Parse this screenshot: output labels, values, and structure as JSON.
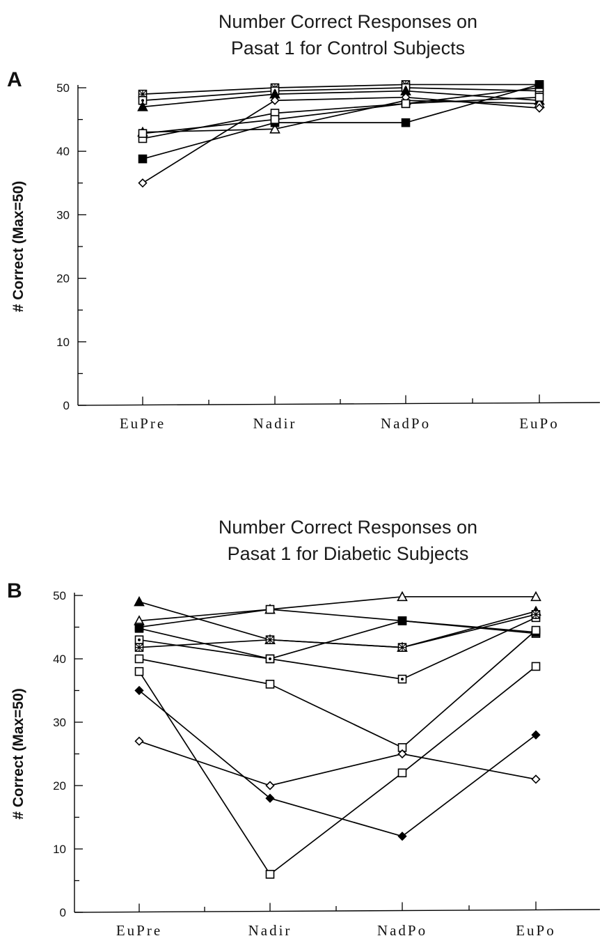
{
  "chart_data": [
    {
      "panel_label": "A",
      "type": "line",
      "title_lines": [
        "Number Correct Responses on",
        "Pasat 1 for Control Subjects"
      ],
      "ylabel": "# Correct (Max=50)",
      "xlabel": "",
      "ylim": [
        0,
        50
      ],
      "yticks": [
        0,
        10,
        20,
        30,
        40,
        50
      ],
      "categories": [
        "EuPre",
        "Nadir",
        "NadPo",
        "EuPo"
      ],
      "grid": false,
      "series": [
        {
          "values": [
            49,
            50,
            50.5,
            50.5
          ],
          "marker": "square-cross"
        },
        {
          "values": [
            48,
            49.5,
            50,
            49.5
          ],
          "marker": "square-dot"
        },
        {
          "values": [
            47,
            49,
            49.5,
            48
          ],
          "marker": "triangle-filled"
        },
        {
          "values": [
            43,
            43.5,
            48,
            47.5
          ],
          "marker": "triangle-open"
        },
        {
          "values": [
            42,
            46,
            47.5,
            50
          ],
          "marker": "square-open"
        },
        {
          "values": [
            38.8,
            44.5,
            44.5,
            50.5
          ],
          "marker": "square-filled"
        },
        {
          "values": [
            35,
            48,
            48.5,
            46.8
          ],
          "marker": "diamond-open"
        },
        {
          "values": [
            42.8,
            45,
            47.5,
            48.5
          ],
          "marker": "square-open"
        }
      ]
    },
    {
      "panel_label": "B",
      "type": "line",
      "title_lines": [
        "Number Correct Responses on",
        "Pasat 1 for Diabetic Subjects"
      ],
      "ylabel": "# Correct (Max=50)",
      "xlabel": "",
      "ylim": [
        0,
        50
      ],
      "yticks": [
        0,
        10,
        20,
        30,
        40,
        50
      ],
      "categories": [
        "EuPre",
        "Nadir",
        "NadPo",
        "EuPo"
      ],
      "grid": false,
      "series": [
        {
          "values": [
            49,
            43,
            41.8,
            47.5
          ],
          "marker": "triangle-filled"
        },
        {
          "values": [
            46,
            47.8,
            49.8,
            49.8
          ],
          "marker": "triangle-open"
        },
        {
          "values": [
            45,
            47.8,
            46,
            44
          ],
          "marker": "square-open"
        },
        {
          "values": [
            44.8,
            40,
            46,
            44.2
          ],
          "marker": "square-filled"
        },
        {
          "values": [
            43,
            40,
            36.8,
            46.5
          ],
          "marker": "square-dot"
        },
        {
          "values": [
            41.8,
            43,
            41.8,
            47
          ],
          "marker": "square-cross"
        },
        {
          "values": [
            40,
            36,
            26,
            44.5
          ],
          "marker": "square-open"
        },
        {
          "values": [
            38,
            6,
            22,
            38.8
          ],
          "marker": "square-open"
        },
        {
          "values": [
            35,
            18,
            12,
            28
          ],
          "marker": "diamond-filled"
        },
        {
          "values": [
            27,
            20,
            25,
            21
          ],
          "marker": "diamond-open"
        }
      ]
    }
  ]
}
